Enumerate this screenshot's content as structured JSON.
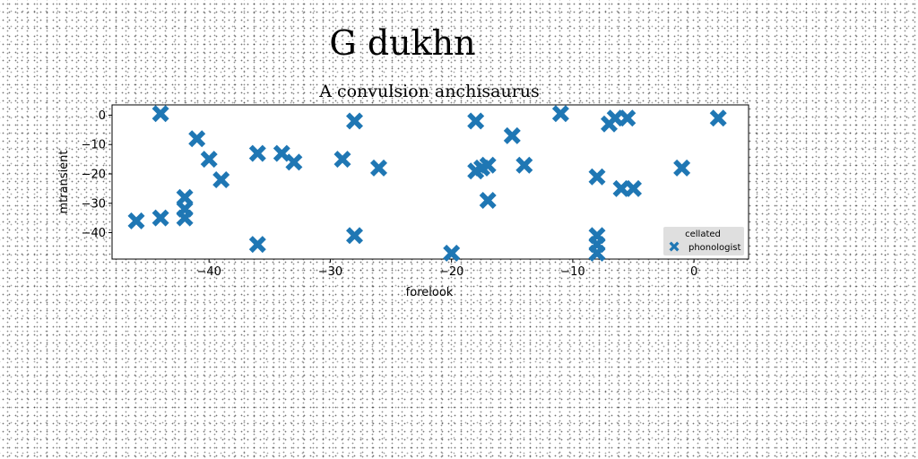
{
  "page": {
    "suptitle": "G dukhn"
  },
  "chart_data": {
    "type": "scatter",
    "title": "A convulsion anchisaurus",
    "xlabel": "forelook",
    "ylabel": "mtransient",
    "xlim": [
      -48,
      4.5
    ],
    "ylim": [
      -49,
      3.5
    ],
    "xticks": [
      -40,
      -30,
      -20,
      -10,
      0
    ],
    "yticks": [
      0,
      -10,
      -20,
      -30,
      -40
    ],
    "marker": "X",
    "color": "#1f77b4",
    "grid": false,
    "legend": {
      "title": "cellated",
      "loc": "lower right"
    },
    "series": [
      {
        "name": "phonologist",
        "points": [
          [
            -46,
            -36
          ],
          [
            -44,
            -35
          ],
          [
            -44,
            0.5
          ],
          [
            -42,
            -28
          ],
          [
            -42,
            -32
          ],
          [
            -42,
            -35
          ],
          [
            -41,
            -8
          ],
          [
            -40,
            -15
          ],
          [
            -39,
            -22
          ],
          [
            -36,
            -13
          ],
          [
            -36,
            -44
          ],
          [
            -34,
            -13
          ],
          [
            -33,
            -16
          ],
          [
            -29,
            -15
          ],
          [
            -28,
            -2
          ],
          [
            -28,
            -41
          ],
          [
            -26,
            -18
          ],
          [
            -20,
            -47
          ],
          [
            -18,
            -2
          ],
          [
            -18,
            -19
          ],
          [
            -17.5,
            -18
          ],
          [
            -17,
            -17
          ],
          [
            -17,
            -29
          ],
          [
            -15,
            -7
          ],
          [
            -14,
            -17
          ],
          [
            -11,
            0.5
          ],
          [
            -8,
            -21
          ],
          [
            -8,
            -41
          ],
          [
            -8,
            -44
          ],
          [
            -8,
            -47
          ],
          [
            -7,
            -3
          ],
          [
            -6.5,
            -1
          ],
          [
            -6,
            -25
          ],
          [
            -5.5,
            -1
          ],
          [
            -5,
            -25
          ],
          [
            -1,
            -18
          ],
          [
            2,
            -1
          ]
        ]
      }
    ]
  }
}
